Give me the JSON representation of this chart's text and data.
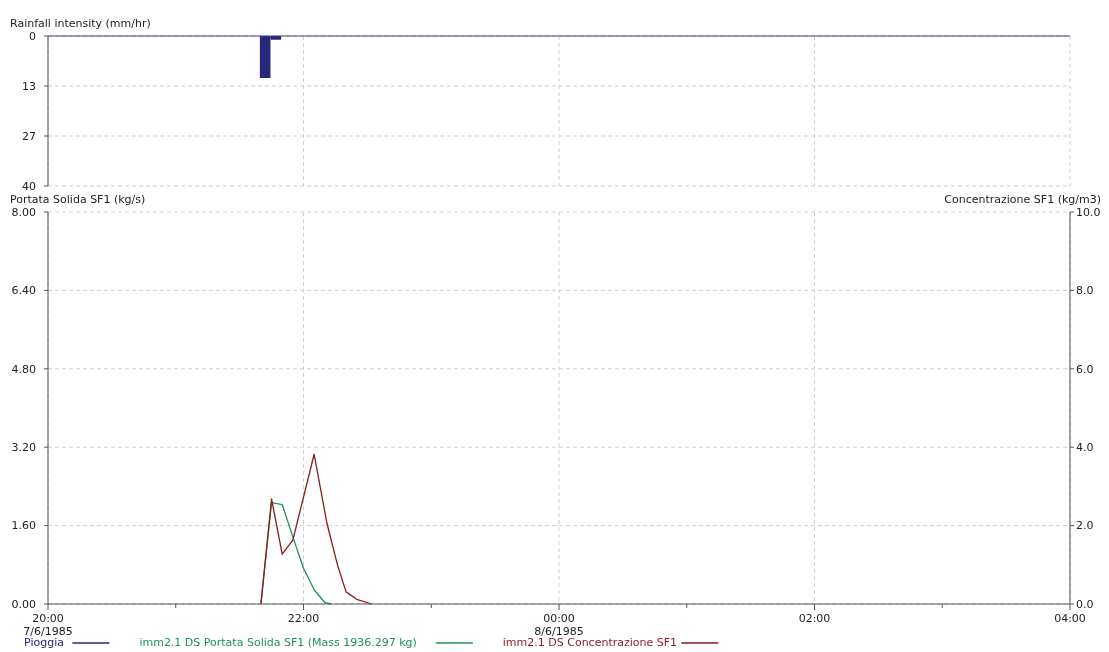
{
  "chart_data": [
    {
      "type": "bar",
      "ylabel": "Rainfall intensity (mm/hr)",
      "xlim": [
        "1985-06-07T20:00",
        "1985-06-08T04:00"
      ],
      "xticks": [
        "1985-06-07T20:00",
        "1985-06-07T22:00",
        "1985-06-08T00:00",
        "1985-06-08T02:00",
        "1985-06-08T04:00"
      ],
      "ylim": [
        40,
        0
      ],
      "yticks": [
        0,
        {
          "value": 13.33,
          "label": "13"
        },
        {
          "value": 26.67,
          "label": "27"
        },
        40
      ],
      "tick_labels": "y",
      "grid": true,
      "legend": "bottom",
      "series": [
        {
          "name": "Pioggia",
          "color": "#28287a",
          "x": [
            "1985-06-07T21:42",
            "1985-06-07T21:47"
          ],
          "values": [
            11.2,
            1.0
          ]
        }
      ]
    },
    {
      "type": "line",
      "ylabel": "Portata Solida SF1 (kg/s)",
      "y2label": "Concentrazione SF1 (kg/m3)",
      "xlim": [
        "1985-06-07T20:00",
        "1985-06-08T04:00"
      ],
      "xticks": [
        {
          "value": "1985-06-07T20:00",
          "label": "20:00\n7/6/1985"
        },
        {
          "value": "1985-06-07T21:00",
          "label": null
        },
        {
          "value": "1985-06-07T22:00",
          "label": "22:00"
        },
        {
          "value": "1985-06-07T23:00",
          "label": null
        },
        {
          "value": "1985-06-08T00:00",
          "label": "00:00\n8/6/1985"
        },
        {
          "value": "1985-06-08T01:00",
          "label": null
        },
        {
          "value": "1985-06-08T02:00",
          "label": "02:00"
        },
        {
          "value": "1985-06-08T03:00",
          "label": null
        },
        {
          "value": "1985-06-08T04:00",
          "label": "04:00"
        }
      ],
      "ylim": [
        0,
        8
      ],
      "yticks": [
        {
          "value": 0,
          "label": "0.00"
        },
        {
          "value": 1.6,
          "label": "1.60"
        },
        {
          "value": 3.2,
          "label": "3.20"
        },
        {
          "value": 4.8,
          "label": "4.80"
        },
        {
          "value": 6.4,
          "label": "6.40"
        },
        {
          "value": 8,
          "label": "8.00"
        }
      ],
      "y2lim": [
        0,
        10
      ],
      "y2ticks": [
        {
          "value": 0,
          "label": "0.0"
        },
        {
          "value": 2,
          "label": "2.0"
        },
        {
          "value": 4,
          "label": "4.0"
        },
        {
          "value": 6,
          "label": "6.0"
        },
        {
          "value": 8,
          "label": "8.0"
        },
        {
          "value": 10,
          "label": "10.0"
        }
      ],
      "grid": true,
      "legend": "bottom",
      "series": [
        {
          "name": "imm2.1 DS Portata Solida SF1 (Mass 1936.297 kg)",
          "color": "#1a9650",
          "x": [
            "1985-06-07T21:40",
            "1985-06-07T21:45",
            "1985-06-07T21:50",
            "1985-06-07T21:55",
            "1985-06-07T22:00",
            "1985-06-07T22:05",
            "1985-06-07T22:10",
            "1985-06-07T22:13"
          ],
          "values": [
            0,
            2.07,
            2.03,
            1.37,
            0.73,
            0.29,
            0.03,
            0
          ]
        },
        {
          "name": "imm2.1 DS Concentrazione SF1",
          "color": "#8b1a1a",
          "axis": "y2",
          "x": [
            "1985-06-07T21:40",
            "1985-06-07T21:45",
            "1985-06-07T21:50",
            "1985-06-07T21:55",
            "1985-06-07T22:05",
            "1985-06-07T22:11",
            "1985-06-07T22:16",
            "1985-06-07T22:20",
            "1985-06-07T22:25",
            "1985-06-07T22:32"
          ],
          "values": [
            0,
            2.68,
            1.27,
            1.63,
            3.82,
            2.06,
            0.99,
            0.31,
            0.12,
            0
          ]
        }
      ]
    }
  ]
}
